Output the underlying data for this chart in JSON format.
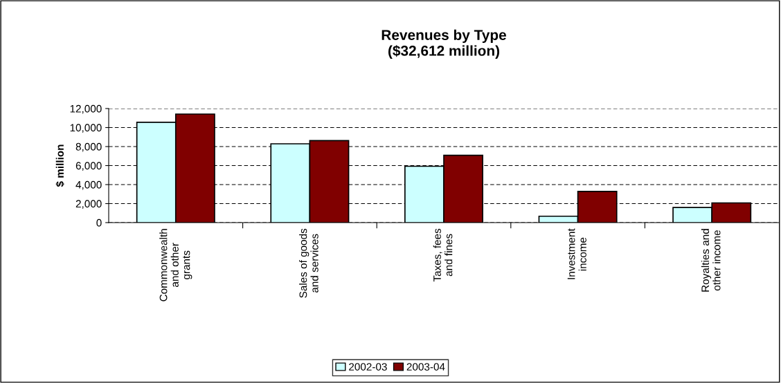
{
  "chart_data": {
    "type": "bar",
    "title": "Revenues by Type\n($32,612 million)",
    "ylabel": "$ million",
    "categories": [
      "Commonwealth\nand other\ngrants",
      "Sales of goods\nand services",
      "Taxes, fees\nand fines",
      "Investment\nincome",
      "Royalties and\nother income"
    ],
    "series": [
      {
        "name": "2002-03",
        "color": "#ccffff",
        "values": [
          10550,
          8290,
          5930,
          670,
          1590
        ]
      },
      {
        "name": "2003-04",
        "color": "#800000",
        "values": [
          11420,
          8630,
          7080,
          3280,
          2070
        ]
      }
    ],
    "ylim": [
      0,
      12000
    ],
    "yticks": [
      {
        "value": 0,
        "label": "0"
      },
      {
        "value": 2000,
        "label": "2,000"
      },
      {
        "value": 4000,
        "label": "4,000"
      },
      {
        "value": 6000,
        "label": "6,000"
      },
      {
        "value": 8000,
        "label": "8,000"
      },
      {
        "value": 10000,
        "label": "10,000"
      },
      {
        "value": 12000,
        "label": "12,000"
      }
    ],
    "grid": "y",
    "legend": "bottom"
  }
}
